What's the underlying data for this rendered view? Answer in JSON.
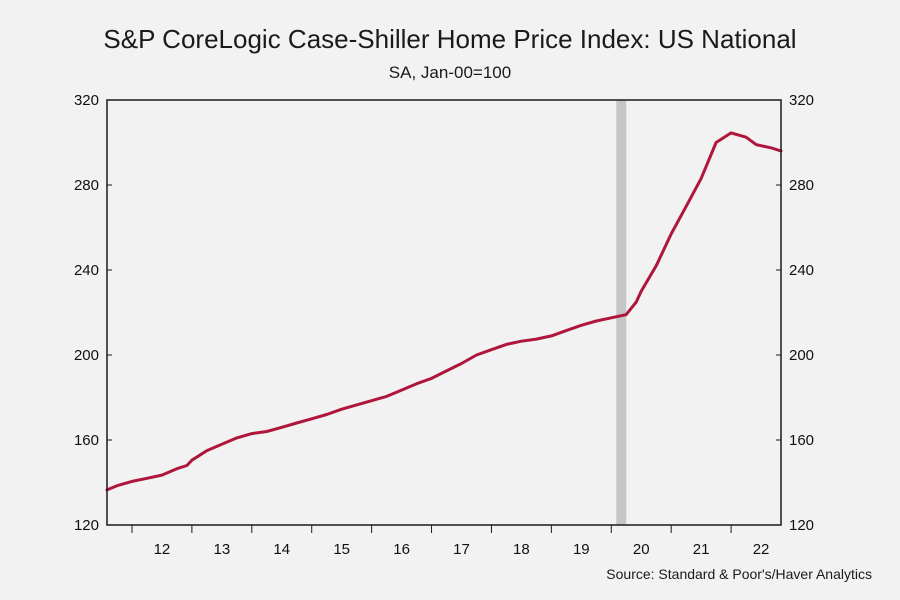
{
  "chart_data": {
    "type": "line",
    "title": "S&P CoreLogic Case-Shiller Home Price Index: US National",
    "subtitle": "SA, Jan-00=100",
    "source": "Source: Standard & Poor's/Haver Analytics",
    "ylim": [
      120,
      320
    ],
    "y_ticks": [
      120,
      160,
      200,
      240,
      280,
      320
    ],
    "y_tick_labels": [
      "120",
      "160",
      "200",
      "240",
      "280",
      "320"
    ],
    "x_range": [
      2011.583,
      2022.833
    ],
    "x_tick_labels": [
      "12",
      "13",
      "14",
      "15",
      "16",
      "17",
      "18",
      "19",
      "20",
      "21",
      "22"
    ],
    "x_label_positions": [
      2012.5,
      2013.5,
      2014.5,
      2015.5,
      2016.5,
      2017.5,
      2018.5,
      2019.5,
      2020.5,
      2021.5,
      2022.5
    ],
    "recession": {
      "start": 2020.083,
      "end": 2020.25,
      "color": "#c6c6c6"
    },
    "grid": false,
    "line_color": "#b0163b",
    "series": [
      {
        "x": [
          2011.583,
          2011.75,
          2012.0,
          2012.25,
          2012.5,
          2012.75,
          2012.917,
          2013.0,
          2013.25,
          2013.5,
          2013.75,
          2014.0,
          2014.25,
          2014.5,
          2014.75,
          2015.0,
          2015.25,
          2015.5,
          2015.75,
          2016.0,
          2016.25,
          2016.5,
          2016.75,
          2017.0,
          2017.25,
          2017.5,
          2017.75,
          2018.0,
          2018.25,
          2018.5,
          2018.75,
          2019.0,
          2019.25,
          2019.5,
          2019.75,
          2020.0,
          2020.25,
          2020.417,
          2020.5,
          2020.75,
          2021.0,
          2021.25,
          2021.5,
          2021.75,
          2022.0,
          2022.25,
          2022.417,
          2022.5,
          2022.667,
          2022.833
        ],
        "values": [
          136.5,
          138.5,
          140.5,
          142.0,
          143.5,
          146.5,
          148.0,
          150.5,
          155.0,
          158.0,
          161.0,
          163.0,
          164.0,
          166.0,
          168.0,
          170.0,
          172.0,
          174.5,
          176.5,
          178.5,
          180.5,
          183.5,
          186.5,
          189.0,
          192.5,
          196.0,
          200.0,
          202.5,
          205.0,
          206.5,
          207.5,
          209.0,
          211.5,
          214.0,
          216.0,
          217.5,
          219.0,
          225.0,
          230.0,
          242.0,
          257.0,
          270.0,
          283.0,
          300.0,
          304.5,
          302.5,
          299.0,
          298.5,
          297.5,
          296.0
        ]
      }
    ]
  }
}
